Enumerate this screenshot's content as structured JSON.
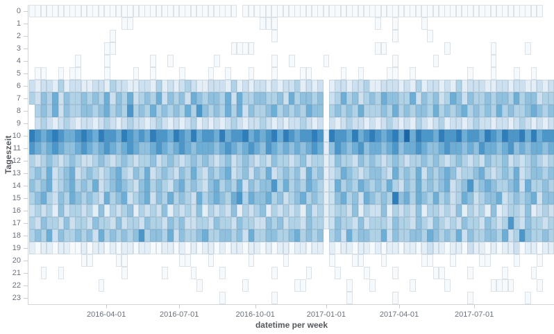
{
  "chart_data": {
    "type": "heatmap",
    "title": "",
    "xlabel": "datetime per week",
    "ylabel": "Tageszeit",
    "x_ticks": [
      {
        "label": "2016-04-01",
        "pos": 0.147
      },
      {
        "label": "2016-07-01",
        "pos": 0.286
      },
      {
        "label": "2016-10-01",
        "pos": 0.431
      },
      {
        "label": "2017-01-01",
        "pos": 0.566
      },
      {
        "label": "2017-04-01",
        "pos": 0.705
      },
      {
        "label": "2017-07-01",
        "pos": 0.848
      }
    ],
    "y_categories": [
      "0",
      "1",
      "2",
      "3",
      "4",
      "5",
      "6",
      "7",
      "8",
      "9",
      "10",
      "11",
      "12",
      "13",
      "14",
      "15",
      "16",
      "17",
      "18",
      "19",
      "20",
      "21",
      "22",
      "23"
    ],
    "weeks": 91,
    "legend_position": "none",
    "grid": false,
    "palette": [
      "",
      "#f6fafd",
      "#e3eef7",
      "#cde0f0",
      "#b0d2e7",
      "#8fc1de",
      "#6caed6",
      "#4b97c9",
      "#2f7ebc",
      "#1b66a9"
    ],
    "rows": [
      "1111111111111111111111111111111111110111111111111111111111111111111111111111111111111111100",
      "0000000000000000110000000000000000000000111000000000000000001001000010000000000000000000000",
      "0000000000000010000000000000000000000000001000000000000000000001000001000000000000000000000",
      "0000000000000110000000000000000000011110000000000000000000001100000000001000000010000010000",
      "0000000010000100000001001000000010000000001001000001000000000001000000100000000010000000000",
      "0110010110000100001001000010000100100010001000011000001001000011001000000000100010001001000",
      "3233242332233243322332423234322333242323323233423230233233422333232423323242333223323322323",
      "4354635445454635463454635453654554636445544536455450346453454655446354534653544545546455344",
      "0454635445545645474546454546475454646354456454546550454546444546454554645456454546454456545",
      "0343234323323432343323432323423232343233432323343230323433232343232432342332343323323432323",
      "8767876678768776876768776876867768677867678687677872877686787678696877687786776876877868677",
      "7656765567656765676556765676566656765676576565656762576567566567566765567665657665675656656",
      "4345434543345434543445345434545434534543435443453442354435454345434454543454343544534345434",
      "4546345634543456435463454354643545634535463454536452346543455436454635456534456434546345545",
      "5456345645463456543564543564543564546354557464546542364546545464354645456345745654456364454",
      "4564354654543645634563546454364565467465564534564542356453654548564654645346534556345456355",
      "3434253443425243452434352434352434352434524343425342344352433524343524434352434252344352343",
      "4354435344354435344354435453344354435443354534435442354435344435443543543435443543474354434",
      "4546354454536454545745546354456445545364455445645450453645544635445546545463544554634754454",
      "2122122112122121221221122121212212122122121221221220212212212122122123221221322121223122122",
      "0000000001100001100000000011000100000010000010000000100011000100000011000100001100001000100",
      "0010010000000000100000010000100001000000001000001000010000100001000000110000100000100001000",
      "0000000000001000000000000000010000000100000000110000000100010000001000001000000011110000100",
      "0000000000000000000000000000000001000000001000000000000100000001000000000000100000000010000"
    ]
  },
  "style": {
    "axis_label_color": "#69707d",
    "axis_title_color": "#54585c",
    "axis_line_color": "#d0d4d9",
    "background": "#ffffff"
  }
}
